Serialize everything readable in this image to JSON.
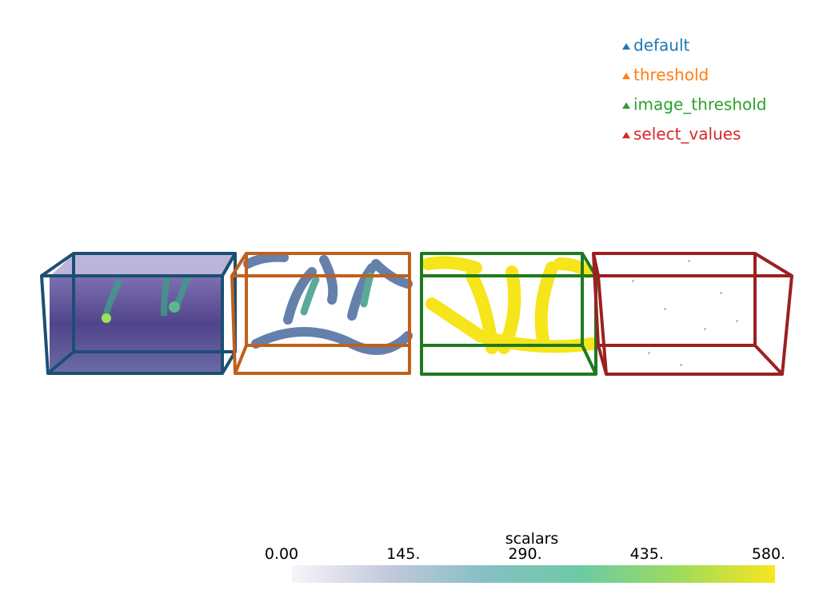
{
  "legend": [
    {
      "label": "default",
      "color": "#1f77b4"
    },
    {
      "label": "threshold",
      "color": "#ff7f0e"
    },
    {
      "label": "image_threshold",
      "color": "#2ca02c"
    },
    {
      "label": "select_values",
      "color": "#d62728"
    }
  ],
  "scalar_bar": {
    "title": "scalars",
    "range": [
      0,
      580
    ],
    "ticks": [
      {
        "value": 0,
        "label": "0.00"
      },
      {
        "value": 145,
        "label": "145."
      },
      {
        "value": 290,
        "label": "290."
      },
      {
        "value": 435,
        "label": "435."
      },
      {
        "value": 580,
        "label": "580."
      }
    ],
    "colormap": [
      "#f7f5fa",
      "#c3c8dc",
      "#86bfc5",
      "#6ccba4",
      "#9edb5e",
      "#f8e61e"
    ]
  }
}
